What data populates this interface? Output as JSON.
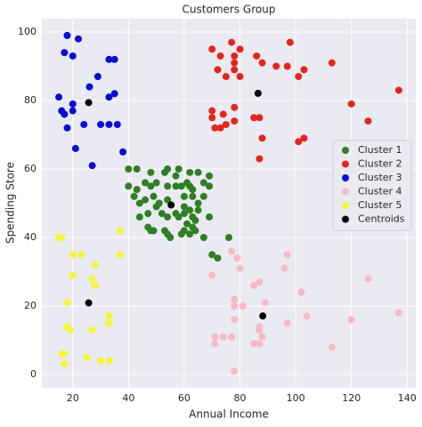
{
  "chart_data": {
    "type": "scatter",
    "title": "Customers Group",
    "x_label": "Annual Income",
    "y_label": "Spending Store",
    "xlim": [
      8.9,
      143.1
    ],
    "ylim": [
      -3.9,
      103.9
    ],
    "xticks": [
      20,
      40,
      60,
      80,
      100,
      120,
      140
    ],
    "yticks": [
      0,
      20,
      40,
      60,
      80,
      100
    ],
    "grid": true,
    "legend": "center right",
    "series": [
      {
        "name": "Cluster 1",
        "color": "#2f7f23",
        "x": [
          40,
          40,
          42,
          43,
          44,
          46,
          47,
          48,
          48,
          48,
          49,
          50,
          50,
          52,
          53,
          54,
          54,
          54,
          54,
          54,
          57,
          57,
          58,
          58,
          59,
          59,
          60,
          60,
          60,
          60,
          61,
          62,
          62,
          62,
          62,
          63,
          63,
          63,
          63,
          64,
          65,
          65,
          65,
          67,
          67,
          67,
          69,
          69,
          69,
          43,
          44,
          46,
          47,
          49,
          51,
          53,
          55,
          57,
          61,
          64,
          70,
          72,
          76
        ],
        "y": [
          60,
          55,
          52,
          60,
          46,
          51,
          47,
          59,
          42,
          55,
          42,
          56,
          49,
          47,
          59,
          46,
          60,
          55,
          41,
          51,
          58,
          55,
          46,
          60,
          55,
          41,
          52,
          47,
          49,
          42,
          56,
          59,
          48,
          55,
          41,
          52,
          54,
          43,
          46,
          42,
          48,
          50,
          59,
          52,
          56,
          40,
          58,
          55,
          46,
          54,
          50,
          56,
          43,
          52,
          50,
          42,
          40,
          47,
          44,
          45,
          35,
          34,
          40
        ]
      },
      {
        "name": "Cluster 2",
        "color": "#e3261b",
        "x": [
          70,
          77,
          80,
          73,
          78,
          78,
          78,
          72,
          75,
          80,
          86,
          88,
          93,
          98,
          97,
          103,
          101,
          113,
          137,
          120,
          126,
          70,
          70,
          74,
          78,
          78,
          73,
          71,
          75,
          85,
          87,
          88,
          101,
          103,
          87
        ],
        "y": [
          95,
          97,
          95,
          93,
          93,
          91,
          89,
          89,
          87,
          87,
          93,
          91,
          90,
          97,
          90,
          89,
          87,
          91,
          83,
          79,
          74,
          77,
          75,
          76,
          78,
          74,
          72,
          72,
          73,
          75,
          75,
          69,
          68,
          69,
          63
        ]
      },
      {
        "name": "Cluster 3",
        "color": "#0b0bd6",
        "x": [
          18,
          22,
          17,
          20,
          33,
          35,
          29,
          26,
          15,
          16,
          17,
          20,
          20,
          33,
          35,
          24,
          30,
          33,
          36,
          18,
          21,
          27,
          38
        ],
        "y": [
          99,
          98,
          94,
          93,
          92,
          92,
          87,
          84,
          81,
          77,
          76,
          79,
          77,
          81,
          82,
          73,
          73,
          73,
          73,
          72,
          66,
          61,
          65
        ]
      },
      {
        "name": "Cluster 4",
        "color": "#f7b9c3",
        "x": [
          77,
          79,
          70,
          80,
          85,
          87,
          96,
          97,
          102,
          78,
          78,
          78,
          81,
          89,
          104,
          97,
          120,
          126,
          137,
          71,
          71,
          74,
          77,
          87,
          88,
          85,
          87,
          113,
          78,
          87
        ],
        "y": [
          36,
          34,
          29,
          31,
          26,
          27,
          31,
          35,
          24,
          22,
          20,
          16,
          20,
          21,
          17,
          15,
          16,
          28,
          18,
          11,
          9,
          11,
          11,
          13,
          11,
          9,
          9,
          8,
          1,
          14
        ]
      },
      {
        "name": "Cluster 5",
        "color": "#f5f53a",
        "x": [
          15,
          16,
          20,
          23,
          20,
          28,
          27,
          28,
          37,
          37,
          33,
          33,
          27,
          18,
          18,
          19,
          16,
          17,
          17,
          25,
          30,
          33
        ],
        "y": [
          40,
          40,
          35,
          35,
          29,
          32,
          28,
          26,
          42,
          35,
          17,
          15,
          13,
          21,
          14,
          13,
          6,
          6,
          3,
          5,
          4,
          4
        ]
      },
      {
        "name": "Centroids",
        "color": "#000000",
        "x": [
          55.3,
          86.5,
          25.7,
          88.2,
          25.7
        ],
        "y": [
          49.5,
          82.1,
          79.4,
          17.1,
          20.9
        ]
      }
    ]
  }
}
